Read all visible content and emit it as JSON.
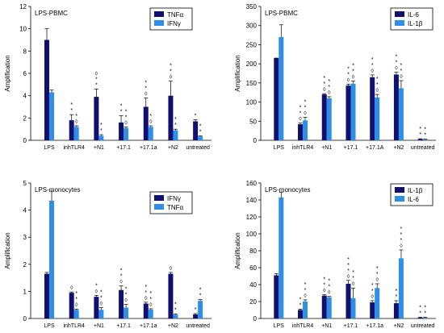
{
  "colors": {
    "dark": "#10106e",
    "light": "#2e8fe8"
  },
  "chart_data": [
    {
      "type": "bar",
      "title": "LPS-PBMC",
      "ylabel": "Amplification",
      "ylim": [
        0,
        12
      ],
      "yticks": [
        0,
        2,
        4,
        6,
        8,
        10,
        12
      ],
      "categories": [
        "LPS",
        "inhTLR4",
        "+N1",
        "+17.1",
        "+17.1a",
        "+N2",
        "untreated"
      ],
      "series": [
        {
          "name": "TNFα",
          "values": [
            9.0,
            1.8,
            3.9,
            1.6,
            3.0,
            4.0,
            1.7
          ],
          "errors": [
            1.0,
            0.5,
            0.7,
            0.6,
            0.8,
            1.3,
            0.15
          ]
        },
        {
          "name": "IFNγ",
          "values": [
            4.3,
            1.2,
            0.4,
            1.1,
            1.2,
            0.9,
            0.35
          ],
          "errors": [
            0.2,
            0.1,
            0.1,
            0.1,
            0.1,
            0.1,
            0.05
          ]
        }
      ],
      "annotations": [
        [
          "",
          ""
        ],
        [
          "* *",
          "◊ *"
        ],
        [
          "* * ◊",
          "* *"
        ],
        [
          "* *",
          "◊ * *"
        ],
        [
          "◊ * *",
          "◊ *"
        ],
        [
          "◊ * *",
          "* *"
        ],
        [
          "*",
          "* *"
        ]
      ]
    },
    {
      "type": "bar",
      "title": "LPS-PBMC",
      "ylabel": "Amplification",
      "ylim": [
        0,
        350
      ],
      "yticks": [
        0,
        50,
        100,
        150,
        200,
        250,
        300,
        350
      ],
      "categories": [
        "LPS",
        "inhTLR4",
        "+N1",
        "+17.1",
        "+17.1A",
        "+N2",
        "untreated"
      ],
      "series": [
        {
          "name": "IL-6",
          "values": [
            215,
            42,
            120,
            143,
            165,
            172,
            3
          ],
          "errors": [
            0,
            3,
            2,
            4,
            6,
            6,
            1
          ]
        },
        {
          "name": "IL-1β",
          "values": [
            270,
            52,
            110,
            148,
            112,
            136,
            2
          ],
          "errors": [
            32,
            8,
            4,
            7,
            8,
            20,
            1
          ]
        }
      ],
      "annotations": [
        [
          "",
          ""
        ],
        [
          "◊ * *",
          "◊ * *"
        ],
        [
          "◊ * *",
          "◊ * *"
        ],
        [
          "◊ * *",
          "◊ * *"
        ],
        [
          "◊ * *",
          "◊ * *"
        ],
        [
          "◊ * *",
          "◊ * *"
        ],
        [
          "* *",
          "* *"
        ]
      ]
    },
    {
      "type": "bar",
      "title": "LPS-monocytes",
      "ylabel": "Amplification",
      "ylim": [
        0,
        5
      ],
      "yticks": [
        0,
        1,
        2,
        3,
        4,
        5
      ],
      "categories": [
        "LPS",
        "inhTLR4",
        "+N1",
        "+17.1",
        "+17.1a",
        "+N2",
        "untreated"
      ],
      "series": [
        {
          "name": "IFNγ",
          "values": [
            1.65,
            0.95,
            0.8,
            1.05,
            0.55,
            1.65,
            0.15
          ],
          "errors": [
            0.05,
            0.03,
            0.05,
            0.15,
            0.05,
            0.05,
            0.03
          ]
        },
        {
          "name": "TNFα",
          "values": [
            4.35,
            0.32,
            0.32,
            0.4,
            0.33,
            0.14,
            0.65
          ],
          "errors": [
            0.35,
            0.03,
            0.08,
            0.12,
            0.03,
            0.03,
            0.05
          ]
        }
      ],
      "annotations": [
        [
          "",
          ""
        ],
        [
          "◊",
          "◊ * *"
        ],
        [
          "◊ *",
          "◊ * *"
        ],
        [
          "◊ * *",
          "◊ * *"
        ],
        [
          "◊ * *",
          "◊ * *"
        ],
        [
          "◊",
          "* *"
        ],
        [
          "*",
          "* *"
        ]
      ]
    },
    {
      "type": "bar",
      "title": "LPS-monocytes",
      "ylabel": "Amplification",
      "ylim": [
        0,
        160
      ],
      "yticks": [
        0,
        20,
        40,
        60,
        80,
        100,
        120,
        140,
        160
      ],
      "categories": [
        "LPS",
        "inhTLR4",
        "+N1",
        "+17.1",
        "+17.1a",
        "+N2",
        "untreated"
      ],
      "series": [
        {
          "name": "IL-1β",
          "values": [
            51,
            10,
            27,
            41,
            19,
            18,
            1
          ],
          "errors": [
            2,
            1,
            1,
            4,
            2,
            3,
            0.5
          ]
        },
        {
          "name": "IL-6",
          "values": [
            143,
            20,
            25,
            24,
            36,
            71,
            1
          ],
          "errors": [
            6,
            2,
            1,
            12,
            5,
            10,
            0.5
          ]
        }
      ],
      "annotations": [
        [
          "",
          ""
        ],
        [
          "* *",
          "◊ * *"
        ],
        [
          "◊ * *",
          "◊ * *"
        ],
        [
          "◊ * * *",
          "◊ * *"
        ],
        [
          "◊ * *",
          "◊ * *"
        ],
        [
          "* *",
          "◊ * * *"
        ],
        [
          "* *",
          "* *"
        ]
      ]
    }
  ]
}
